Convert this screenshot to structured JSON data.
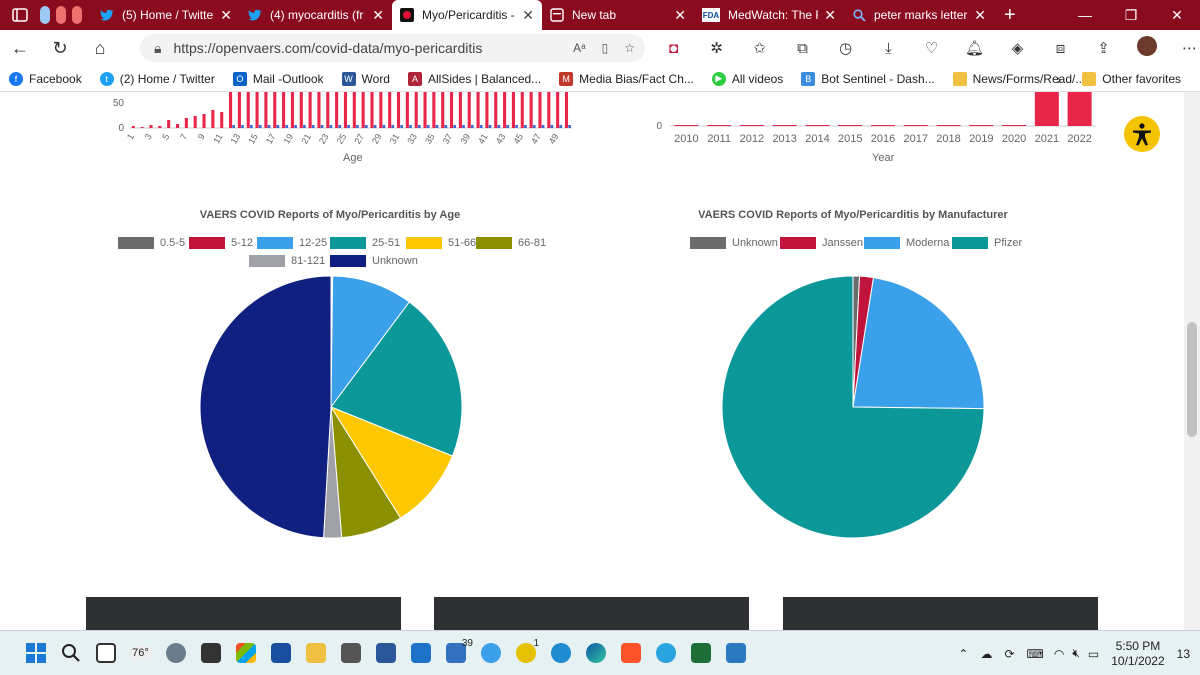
{
  "browser": {
    "tabs": [
      {
        "label": "(5) Home / Twitter",
        "icon": "twitter-icon",
        "active": false
      },
      {
        "label": "(4) myocarditis (fr",
        "icon": "twitter-icon",
        "active": false
      },
      {
        "label": "Myo/Pericarditis -",
        "icon": "openvaers-icon",
        "active": true
      },
      {
        "label": "New tab",
        "icon": "newtab-icon",
        "active": false
      },
      {
        "label": "MedWatch: The FI",
        "icon": "fda-icon",
        "active": false
      },
      {
        "label": "peter marks letter",
        "icon": "search-icon",
        "active": false
      }
    ],
    "url": "https://openvaers.com/covid-data/myo-pericarditis",
    "favorites": [
      {
        "label": "Facebook",
        "icon": "facebook-icon",
        "color": "#1877f2"
      },
      {
        "label": "(2) Home / Twitter",
        "icon": "twitter-icon",
        "color": "#1da1f2"
      },
      {
        "label": "Mail -Outlook",
        "icon": "outlook-icon",
        "color": "#0a64c8"
      },
      {
        "label": "Word",
        "icon": "word-icon",
        "color": "#2b579a"
      },
      {
        "label": "AllSides | Balanced...",
        "icon": "allsides-icon",
        "color": "#b0243a"
      },
      {
        "label": "Media Bias/Fact Ch...",
        "icon": "mediabias-icon",
        "color": "#c0392b"
      },
      {
        "label": "All videos",
        "icon": "video-icon",
        "color": "#2ecc40"
      },
      {
        "label": "Bot Sentinel - Dash...",
        "icon": "bot-icon",
        "color": "#3a8dde"
      },
      {
        "label": "News/Forms/Read/...",
        "icon": "folder-icon",
        "color": "#f0c040"
      }
    ],
    "other_favorites": "Other favorites"
  },
  "top_charts": {
    "age_bar": {
      "y_ticks": [
        "50",
        "0"
      ],
      "x_ticks": [
        "1",
        "3",
        "5",
        "7",
        "9",
        "11",
        "13",
        "15",
        "17",
        "19",
        "21",
        "23",
        "25",
        "27",
        "29",
        "31",
        "33",
        "35",
        "37",
        "39",
        "41",
        "43",
        "45",
        "47",
        "49"
      ],
      "xlabel": "Age"
    },
    "year_bar": {
      "y_ticks": [
        "0"
      ],
      "x_ticks": [
        "2010",
        "2011",
        "2012",
        "2013",
        "2014",
        "2015",
        "2016",
        "2017",
        "2018",
        "2019",
        "2020",
        "2021",
        "2022"
      ],
      "xlabel": "Year"
    }
  },
  "chart_data": [
    {
      "type": "pie",
      "title": "VAERS COVID Reports of Myo/Pericarditis by Age",
      "labels": [
        "0.5-5",
        "5-12",
        "12-25",
        "25-51",
        "51-66",
        "66-81",
        "81-121",
        "Unknown"
      ],
      "values": [
        0.1,
        0.1,
        10.0,
        20.9,
        10.0,
        7.6,
        2.2,
        49.1
      ],
      "colors": [
        "#6b6b6b",
        "#c0143c",
        "#3aa0ea",
        "#0c9899",
        "#fdc800",
        "#8a9000",
        "#a0a0a8",
        "#0f2080"
      ],
      "legend": "top"
    },
    {
      "type": "pie",
      "title": "VAERS COVID Reports of Myo/Pericarditis by Manufacturer",
      "labels": [
        "Unknown",
        "Janssen",
        "Moderna",
        "Pfizer"
      ],
      "values": [
        0.8,
        1.7,
        22.7,
        74.8
      ],
      "colors": [
        "#6b6b6b",
        "#c0143c",
        "#3aa0ea",
        "#0c9899"
      ],
      "legend": "top"
    }
  ],
  "taskbar": {
    "weather": "76°",
    "badge_mail": "39",
    "badge_app": "1",
    "time": "5:50 PM",
    "date": "10/1/2022",
    "notif_count": "13"
  }
}
